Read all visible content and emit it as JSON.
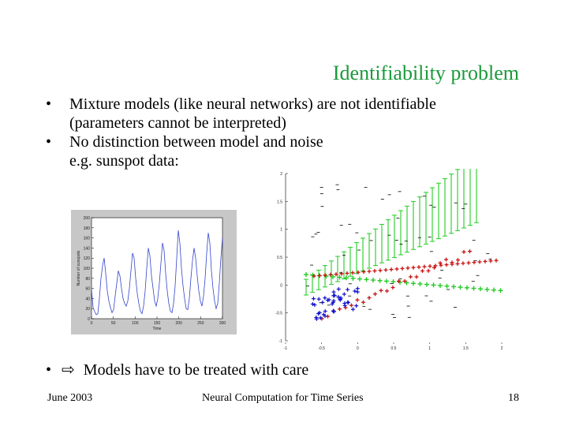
{
  "slide": {
    "title": "Identifiability problem",
    "bullets": [
      {
        "line1": "Mixture models (like neural networks) are not identifiable",
        "line2": "(parameters cannot be interpreted)"
      },
      {
        "line1": "No distinction between model and noise",
        "line2": "e.g. sunspot data:"
      }
    ],
    "bullet_glyph": "•",
    "final_bullet": "Models have to be treated with care",
    "arrow_glyph": "⇨",
    "footer": {
      "left": "June 2003",
      "center": "Neural Computation for Time Series",
      "right": "18"
    }
  },
  "sunspot_plot": {
    "ylabel": "Number of sunspots",
    "xlabel": "Time",
    "y_ticks": [
      "200",
      "180",
      "160",
      "140",
      "120",
      "100",
      "80",
      "60",
      "40",
      "20",
      "0"
    ],
    "x_ticks": [
      "0",
      "50",
      "100",
      "150",
      "200",
      "250",
      "300"
    ],
    "ylim": [
      0,
      200
    ],
    "xlim": [
      0,
      300
    ],
    "series": [
      58,
      22,
      14,
      8,
      10,
      40,
      80,
      105,
      120,
      90,
      55,
      35,
      22,
      12,
      18,
      45,
      70,
      95,
      85,
      60,
      40,
      30,
      25,
      35,
      60,
      95,
      130,
      120,
      80,
      50,
      30,
      15,
      10,
      25,
      55,
      100,
      140,
      125,
      85,
      60,
      35,
      25,
      40,
      70,
      110,
      150,
      135,
      90,
      55,
      30,
      15,
      12,
      30,
      65,
      120,
      175,
      150,
      100,
      65,
      40,
      20,
      18,
      40,
      80,
      115,
      140,
      120,
      85,
      55,
      35,
      25,
      45,
      80,
      130,
      170,
      150,
      95,
      60,
      35,
      20,
      30,
      70,
      120,
      160
    ]
  },
  "mixture_plot": {
    "y_ticks": [
      "2",
      "1.5",
      "1",
      "0.5",
      "0",
      "-0.5",
      "-1"
    ],
    "x_ticks": [
      "-1",
      "-0.5",
      "0",
      "0.5",
      "1",
      "1.5",
      "2"
    ],
    "colors": {
      "green": "#22cc22",
      "red": "#cc1111",
      "blue": "#1111cc",
      "black": "#000000"
    }
  }
}
